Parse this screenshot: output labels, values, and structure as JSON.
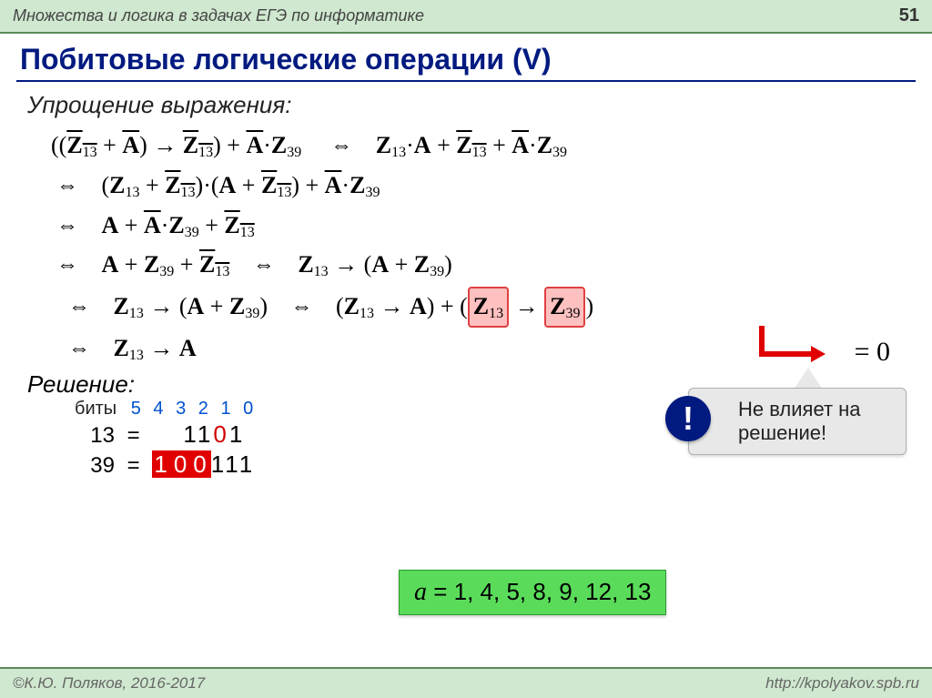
{
  "header": {
    "left": "Множества и логика в задачах ЕГЭ по информатике",
    "page": "51"
  },
  "title": "Побитовые логические операции (V)",
  "subtitle": "Упрощение выражения:",
  "eq0": "= 0",
  "callout": {
    "badge": "!",
    "text1": "Не влияет на",
    "text2": "решение!"
  },
  "solution_label": "Решение:",
  "bits": {
    "label": "биты",
    "positions": "5 4 3 2 1 0",
    "rows": [
      {
        "num": "13",
        "eq": "="
      },
      {
        "num": "39",
        "eq": "="
      }
    ]
  },
  "answer": {
    "var": "a",
    "eq": " = 1, 4, 5, 8, 9, 12, 13"
  },
  "footer": {
    "left": "©К.Ю. Поляков, 2016-2017",
    "right": "http://kpolyakov.spb.ru"
  },
  "colors": {
    "header_bg": "#cfe8cf",
    "title_color": "#001a80",
    "highlight_bg": "#ffc0c0",
    "highlight_border": "#e04040",
    "badge_bg": "#001a80",
    "answer_bg": "#5adc5a",
    "bit_pos_color": "#0050d0",
    "red": "#e00000"
  }
}
